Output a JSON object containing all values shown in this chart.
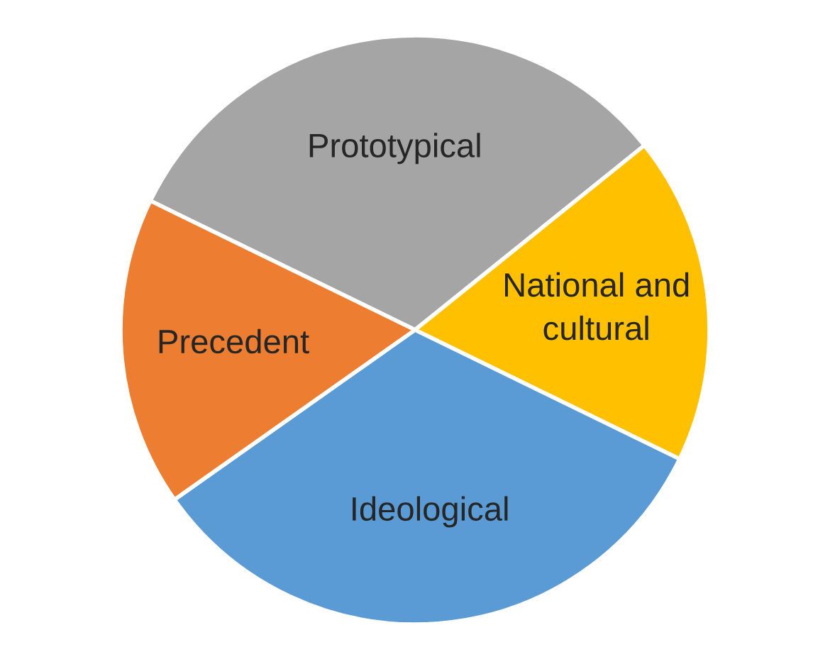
{
  "chart_data": {
    "type": "pie",
    "categories": [
      "Prototypical",
      "National and\ncultural",
      "Ideological",
      "Precedent"
    ],
    "values": [
      32,
      18,
      33,
      17
    ],
    "colors": [
      "#a5a5a5",
      "#ffc000",
      "#5b9bd5",
      "#ed7d31"
    ]
  }
}
